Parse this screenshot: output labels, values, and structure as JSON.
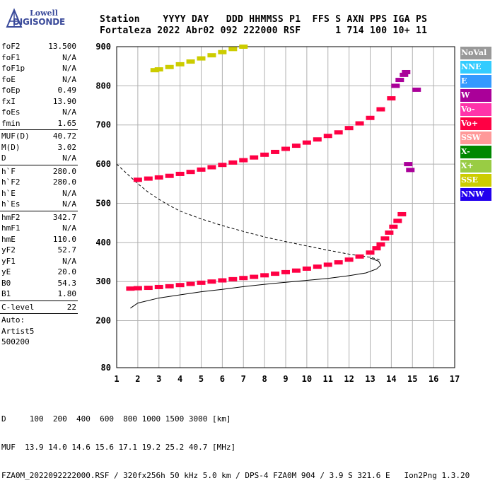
{
  "logo": {
    "top": "Lowell",
    "bottom": "DIGISONDE"
  },
  "header": {
    "line1": "Station    YYYY DAY   DDD HHMMSS P1  FFS S AXN PPS IGA PS",
    "line2": "Fortaleza 2022 Abr02 092 222000 RSF      1 714 100 10+ 11"
  },
  "params": [
    {
      "label": "foF2",
      "value": "13.500"
    },
    {
      "label": "foF1",
      "value": "N/A"
    },
    {
      "label": "foF1p",
      "value": "N/A"
    },
    {
      "label": "foE",
      "value": "N/A"
    },
    {
      "label": "foEp",
      "value": "0.49"
    },
    {
      "label": "fxI",
      "value": "13.90"
    },
    {
      "label": "foEs",
      "value": "N/A"
    },
    {
      "label": "fmin",
      "value": "1.65"
    },
    {
      "sep": true
    },
    {
      "label": "MUF(D)",
      "value": "40.72"
    },
    {
      "label": "M(D)",
      "value": "3.02"
    },
    {
      "label": "D",
      "value": "N/A"
    },
    {
      "sep": true
    },
    {
      "label": "h`F",
      "value": "280.0"
    },
    {
      "label": "h`F2",
      "value": "280.0"
    },
    {
      "label": "h`E",
      "value": "N/A"
    },
    {
      "label": "h`Es",
      "value": "N/A"
    },
    {
      "sep": true
    },
    {
      "label": "hmF2",
      "value": "342.7"
    },
    {
      "label": "hmF1",
      "value": "N/A"
    },
    {
      "label": "hmE",
      "value": "110.0"
    },
    {
      "label": "yF2",
      "value": "52.7"
    },
    {
      "label": "yF1",
      "value": "N/A"
    },
    {
      "label": "yE",
      "value": "20.0"
    },
    {
      "label": "B0",
      "value": "54.3"
    },
    {
      "label": "B1",
      "value": "1.80"
    },
    {
      "sep": true
    },
    {
      "label": "C-level",
      "value": "22"
    },
    {
      "sep": true
    },
    {
      "text": "Auto:"
    },
    {
      "text": "Artist5"
    },
    {
      "text": "500200"
    }
  ],
  "legend": [
    {
      "label": "NoVal",
      "color": "#999999"
    },
    {
      "label": "NNE",
      "color": "#33ccff"
    },
    {
      "label": "E",
      "color": "#3399ff"
    },
    {
      "label": "W",
      "color": "#aa0099"
    },
    {
      "label": "Vo-",
      "color": "#ff33aa"
    },
    {
      "label": "Vo+",
      "color": "#ff0044"
    },
    {
      "label": "SSW",
      "color": "#ff9999"
    },
    {
      "label": "X-",
      "color": "#008800"
    },
    {
      "label": "X+",
      "color": "#99cc44"
    },
    {
      "label": "SSE",
      "color": "#cccc00"
    },
    {
      "label": "NNW",
      "color": "#2200ee"
    }
  ],
  "footer": {
    "line1": "D     100  200  400  600  800 1000 1500 3000 [km]",
    "line2": "MUF  13.9 14.0 14.6 15.6 17.1 19.2 25.2 40.7 [MHz]",
    "line3": "FZA0M_2022092222000.RSF / 320fx256h 50 kHz 5.0 km / DPS-4 FZA0M 904 / 3.9 S 321.6 E   Ion2Png 1.3.20"
  },
  "chart_data": {
    "type": "scatter",
    "xlim": [
      1,
      17
    ],
    "ylim": [
      80,
      900
    ],
    "xticks": [
      1,
      2,
      3,
      4,
      5,
      6,
      7,
      8,
      9,
      10,
      11,
      12,
      13,
      14,
      15,
      16,
      17
    ],
    "yticks": [
      80,
      200,
      300,
      400,
      500,
      600,
      700,
      800,
      900
    ],
    "grid": true,
    "traces": [
      {
        "name": "O-trace F2",
        "color": "#ff0044",
        "x": [
          1.65,
          2.0,
          2.5,
          3.0,
          3.5,
          4.0,
          4.5,
          5.0,
          5.5,
          6.0,
          6.5,
          7.0,
          7.5,
          8.0,
          8.5,
          9.0,
          9.5,
          10.0,
          10.5,
          11.0,
          11.5,
          12.0,
          12.5,
          13.0,
          13.3,
          13.5,
          13.7,
          13.9,
          14.1,
          14.3,
          14.5
        ],
        "y": [
          282,
          283,
          284,
          286,
          288,
          291,
          294,
          297,
          300,
          303,
          306,
          309,
          312,
          316,
          320,
          324,
          328,
          333,
          338,
          343,
          349,
          356,
          364,
          374,
          385,
          395,
          410,
          425,
          440,
          455,
          472
        ]
      },
      {
        "name": "Second hop",
        "color": "#ff0044",
        "x": [
          2.0,
          2.5,
          3.0,
          3.5,
          4.0,
          4.5,
          5.0,
          5.5,
          6.0,
          6.5,
          7.0,
          7.5,
          8.0,
          8.5,
          9.0,
          9.5,
          10.0,
          10.5,
          11.0,
          11.5,
          12.0,
          12.5,
          13.0,
          13.5,
          14.0
        ],
        "y": [
          560,
          563,
          566,
          570,
          575,
          580,
          586,
          592,
          598,
          604,
          610,
          617,
          624,
          631,
          639,
          647,
          655,
          663,
          672,
          681,
          692,
          704,
          718,
          740,
          768
        ]
      },
      {
        "name": "Third hop",
        "color": "#cccc00",
        "x": [
          2.8,
          3.0,
          3.5,
          4.0,
          4.5,
          5.0,
          5.5,
          6.0,
          6.5,
          7.0
        ],
        "y": [
          840,
          842,
          848,
          855,
          862,
          870,
          878,
          886,
          894,
          900
        ]
      },
      {
        "name": "Scattered high",
        "color": "#aa0099",
        "x": [
          14.2,
          14.4,
          14.6,
          14.7,
          15.2,
          14.8,
          14.9
        ],
        "y": [
          800,
          815,
          828,
          835,
          790,
          600,
          585
        ]
      }
    ],
    "profile": {
      "name": "Electron density profile",
      "color": "#000000",
      "x": [
        1.65,
        2.0,
        3.0,
        4.0,
        5.0,
        6.0,
        7.0,
        8.0,
        9.0,
        10.0,
        11.0,
        12.0,
        12.8,
        13.3,
        13.5,
        13.4,
        13.0
      ],
      "y": [
        232,
        245,
        258,
        266,
        274,
        280,
        287,
        293,
        298,
        303,
        308,
        315,
        322,
        332,
        342,
        352,
        360
      ]
    },
    "profile_dashed": {
      "name": "Profile extension",
      "color": "#000000",
      "x": [
        1.0,
        1.5,
        2.0,
        2.5,
        3.0,
        3.5,
        4.0,
        5.0,
        6.0,
        7.0,
        8.0,
        9.0,
        10.0,
        11.0,
        12.0,
        13.0,
        13.5
      ],
      "y": [
        600,
        575,
        550,
        528,
        510,
        494,
        480,
        460,
        443,
        428,
        414,
        402,
        391,
        380,
        370,
        362,
        355
      ]
    }
  }
}
